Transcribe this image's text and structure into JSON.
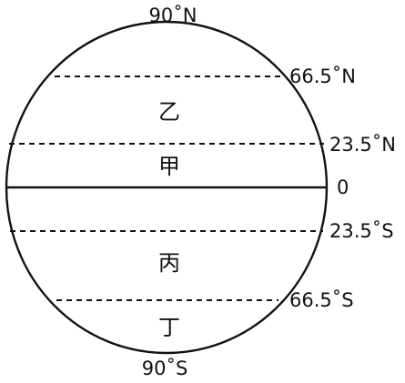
{
  "diagram": {
    "north_pole_label": "90˚N",
    "south_pole_label": "90˚S",
    "latitudes": [
      {
        "label": "66.5˚N",
        "kind": "arctic-circle"
      },
      {
        "label": "23.5˚N",
        "kind": "tropic-of-cancer"
      },
      {
        "label": "0",
        "kind": "equator"
      },
      {
        "label": "23.5˚S",
        "kind": "tropic-of-capricorn"
      },
      {
        "label": "66.5˚S",
        "kind": "antarctic-circle"
      }
    ],
    "zones": [
      {
        "label": "乙"
      },
      {
        "label": "甲"
      },
      {
        "label": "丙"
      },
      {
        "label": "丁"
      }
    ]
  }
}
